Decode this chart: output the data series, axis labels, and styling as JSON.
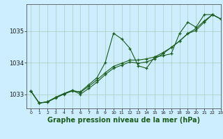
{
  "background_color": "#cceeff",
  "grid_color": "#aaccbb",
  "line_color": "#1a5c1a",
  "marker_color": "#1a5c1a",
  "xlabel": "Graphe pression niveau de la mer (hPa)",
  "xlabel_fontsize": 7,
  "xlim": [
    -0.5,
    23
  ],
  "ylim": [
    1032.55,
    1035.85
  ],
  "yticks": [
    1033,
    1034,
    1035
  ],
  "xticks": [
    0,
    1,
    2,
    3,
    4,
    5,
    6,
    7,
    8,
    9,
    10,
    11,
    12,
    13,
    14,
    15,
    16,
    17,
    18,
    19,
    20,
    21,
    22,
    23
  ],
  "series": [
    [
      1033.1,
      1032.72,
      1032.75,
      1032.88,
      1033.0,
      1033.1,
      1033.08,
      1033.3,
      1033.52,
      1034.0,
      1034.93,
      1034.75,
      1034.45,
      1033.9,
      1033.82,
      1034.18,
      1034.22,
      1034.28,
      1034.92,
      1035.28,
      1035.12,
      1035.52,
      1035.52,
      1035.38
    ],
    [
      1033.1,
      1032.72,
      1032.76,
      1032.9,
      1033.02,
      1033.12,
      1033.06,
      1033.25,
      1033.45,
      1033.68,
      1033.88,
      1033.98,
      1034.08,
      1034.08,
      1034.12,
      1034.18,
      1034.32,
      1034.48,
      1034.68,
      1034.92,
      1035.08,
      1035.32,
      1035.52,
      1035.38
    ],
    [
      1033.1,
      1032.72,
      1032.76,
      1032.9,
      1033.02,
      1033.12,
      1033.0,
      1033.18,
      1033.38,
      1033.62,
      1033.82,
      1033.92,
      1034.02,
      1033.98,
      1034.02,
      1034.12,
      1034.28,
      1034.48,
      1034.68,
      1034.92,
      1035.02,
      1035.28,
      1035.52,
      1035.38
    ]
  ]
}
